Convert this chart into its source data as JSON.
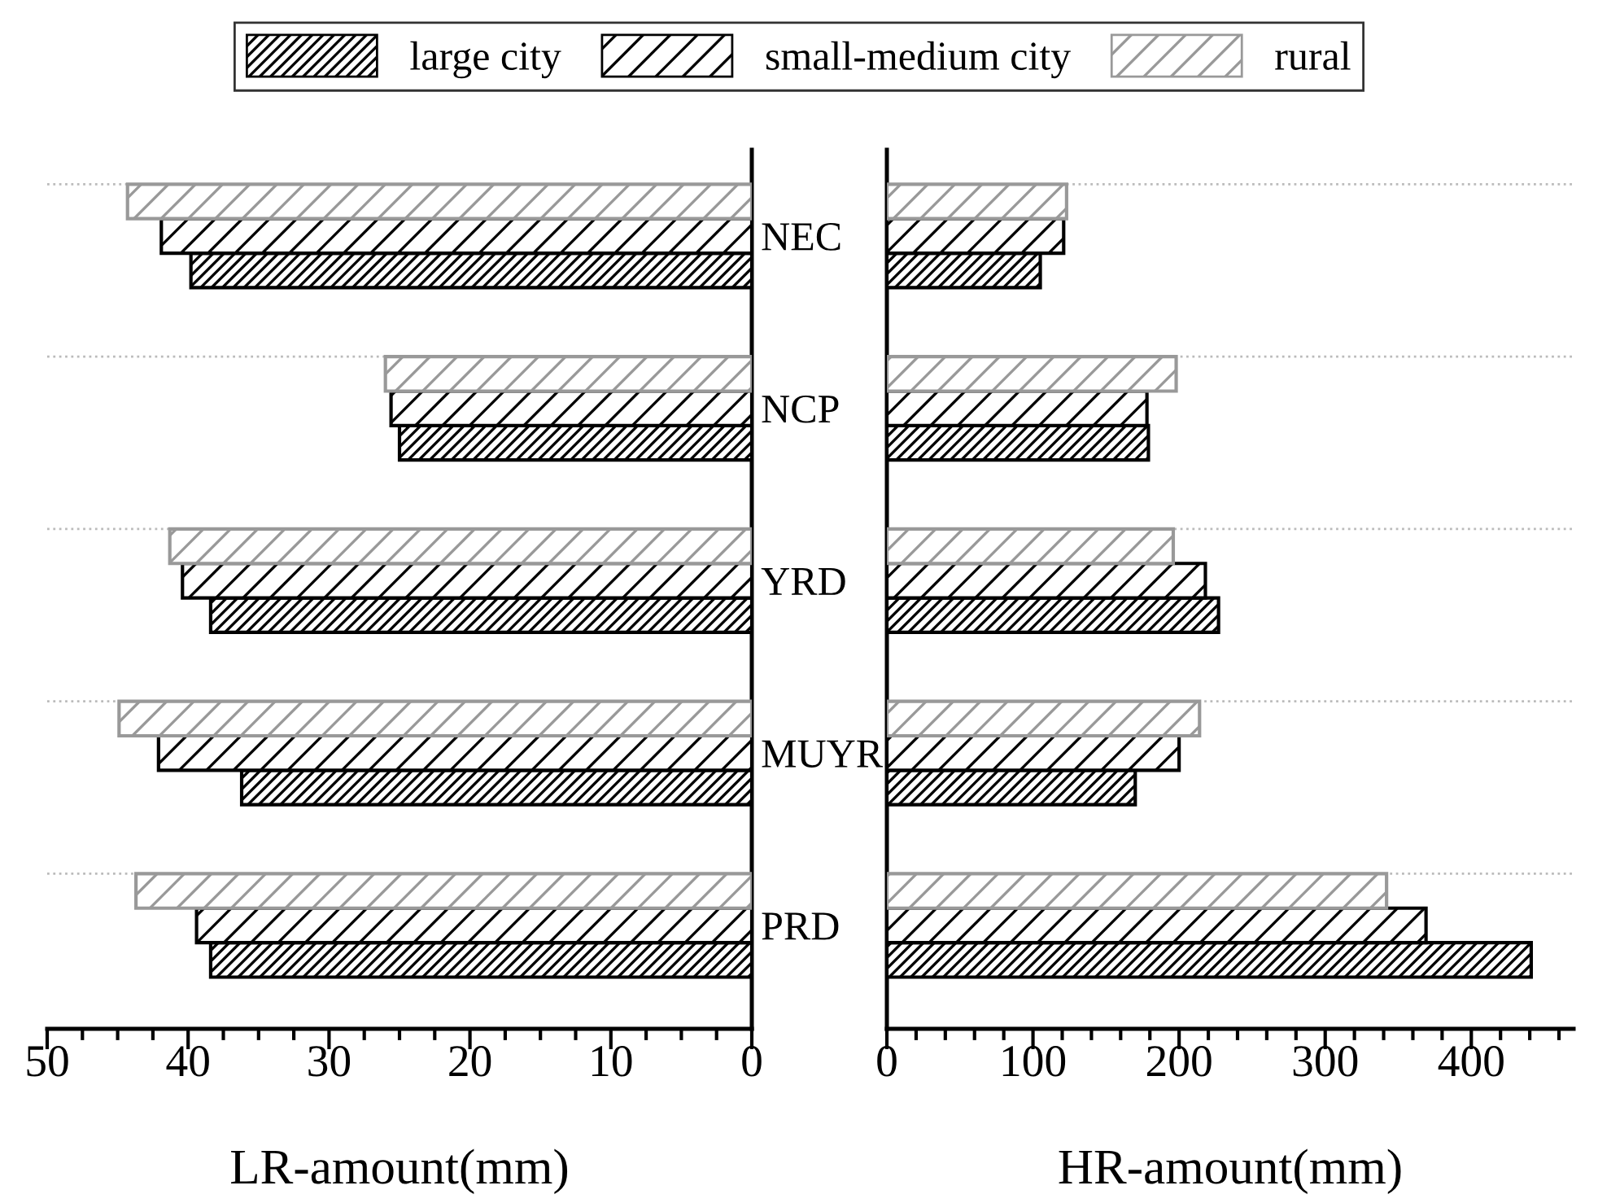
{
  "chart_data": [
    {
      "type": "bar",
      "orientation": "horizontal",
      "xlabel": "LR-amount(mm)",
      "categories": [
        "NEC",
        "NCP",
        "YRD",
        "MUYR",
        "PRD"
      ],
      "grid": "y",
      "legend": "top",
      "xlim": [
        50,
        0
      ],
      "xticks": [
        50,
        {
          "value": 47.5,
          "label": null
        },
        {
          "value": 45,
          "label": null
        },
        {
          "value": 42.5,
          "label": null
        },
        40,
        {
          "value": 37.5,
          "label": null
        },
        {
          "value": 35,
          "label": null
        },
        {
          "value": 32.5,
          "label": null
        },
        30,
        {
          "value": 27.5,
          "label": null
        },
        {
          "value": 25,
          "label": null
        },
        {
          "value": 22.5,
          "label": null
        },
        20,
        {
          "value": 17.5,
          "label": null
        },
        {
          "value": 15,
          "label": null
        },
        {
          "value": 12.5,
          "label": null
        },
        10,
        {
          "value": 7.5,
          "label": null
        },
        {
          "value": 5,
          "label": null
        },
        {
          "value": 2.5,
          "label": null
        },
        0
      ],
      "series": [
        {
          "name": "large city",
          "color": "#000000",
          "values": [
            39.8,
            25.0,
            38.4,
            36.2,
            38.4
          ]
        },
        {
          "name": "small-medium city",
          "color": "#000000",
          "values": [
            41.9,
            25.6,
            40.4,
            42.1,
            39.4
          ]
        },
        {
          "name": "rural",
          "color": "#999999",
          "values": [
            44.3,
            26.0,
            41.3,
            44.9,
            43.7
          ]
        }
      ]
    },
    {
      "type": "bar",
      "orientation": "horizontal",
      "xlabel": "HR-amount(mm)",
      "categories": [
        null,
        null,
        null,
        null,
        null
      ],
      "tick_labels": "x",
      "grid": "y",
      "xlim": [
        0,
        470
      ],
      "xticks": [
        0,
        {
          "value": 20,
          "label": null
        },
        {
          "value": 40,
          "label": null
        },
        {
          "value": 60,
          "label": null
        },
        {
          "value": 80,
          "label": null
        },
        100,
        {
          "value": 120,
          "label": null
        },
        {
          "value": 140,
          "label": null
        },
        {
          "value": 160,
          "label": null
        },
        {
          "value": 180,
          "label": null
        },
        200,
        {
          "value": 220,
          "label": null
        },
        {
          "value": 240,
          "label": null
        },
        {
          "value": 260,
          "label": null
        },
        {
          "value": 280,
          "label": null
        },
        300,
        {
          "value": 320,
          "label": null
        },
        {
          "value": 340,
          "label": null
        },
        {
          "value": 360,
          "label": null
        },
        {
          "value": 380,
          "label": null
        },
        400,
        {
          "value": 420,
          "label": null
        },
        {
          "value": 440,
          "label": null
        },
        {
          "value": 460,
          "label": null
        }
      ],
      "series": [
        {
          "color": "#000000",
          "values": [
            105,
            179,
            227,
            170,
            441
          ]
        },
        {
          "color": "#000000",
          "values": [
            121,
            178,
            218,
            200,
            369
          ]
        },
        {
          "color": "#999999",
          "values": [
            123,
            198,
            196,
            214,
            342
          ]
        }
      ]
    }
  ]
}
